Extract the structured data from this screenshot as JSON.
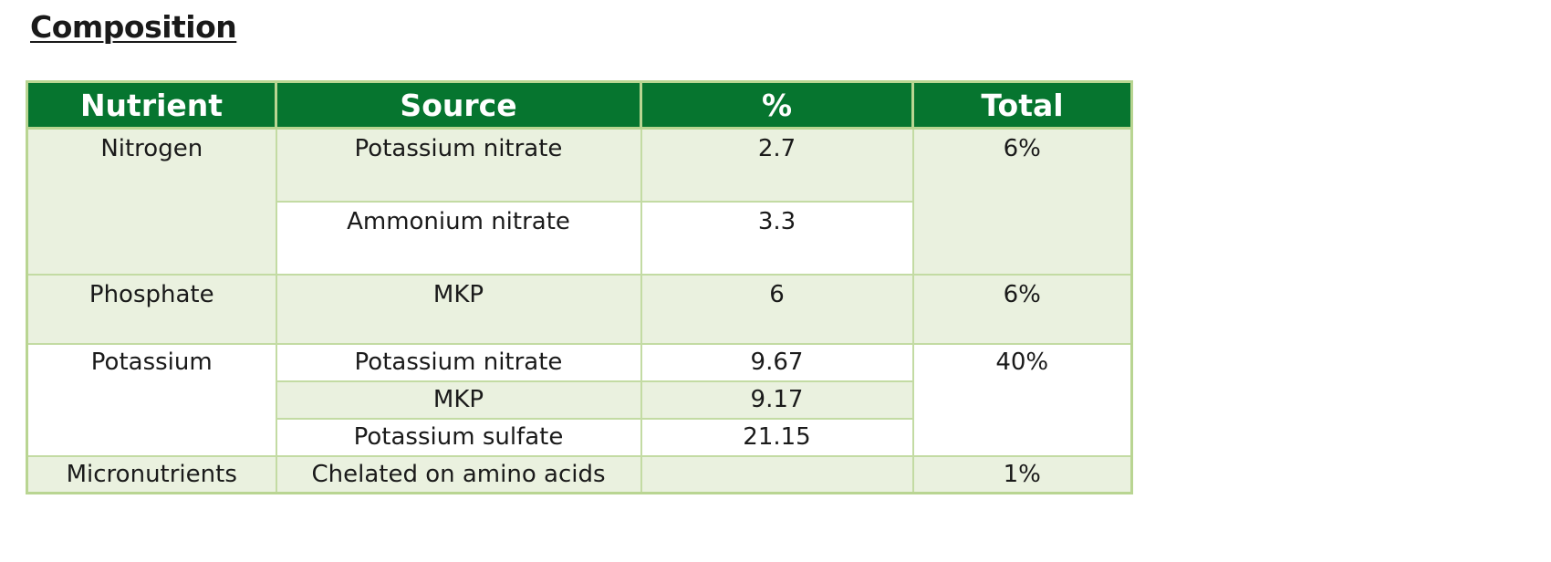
{
  "title": "Composition",
  "table": {
    "headers": [
      "Nutrient",
      "Source",
      "%",
      "Total"
    ],
    "rows": [
      {
        "nutrient": "Nitrogen",
        "source": "Potassium nitrate",
        "percent": "2.7",
        "total": "6%"
      },
      {
        "nutrient": "",
        "source": "Ammonium  nitrate",
        "percent": "3.3",
        "total": ""
      },
      {
        "nutrient": "Phosphate",
        "source": "MKP",
        "percent": "6",
        "total": "6%"
      },
      {
        "nutrient": "Potassium",
        "source": "Potassium nitrate",
        "percent": "9.67",
        "total": "40%"
      },
      {
        "nutrient": "",
        "source": "MKP",
        "percent": "9.17",
        "total": ""
      },
      {
        "nutrient": "",
        "source": "Potassium sulfate",
        "percent": "21.15",
        "total": ""
      },
      {
        "nutrient": "Micronutrients",
        "source": "Chelated on amino acids",
        "percent": "",
        "total": "1%"
      }
    ]
  },
  "colors": {
    "header_bg": "#06752f",
    "header_text": "#ffffff",
    "band_light": "#eaf1df",
    "border": "#c3dba3"
  }
}
